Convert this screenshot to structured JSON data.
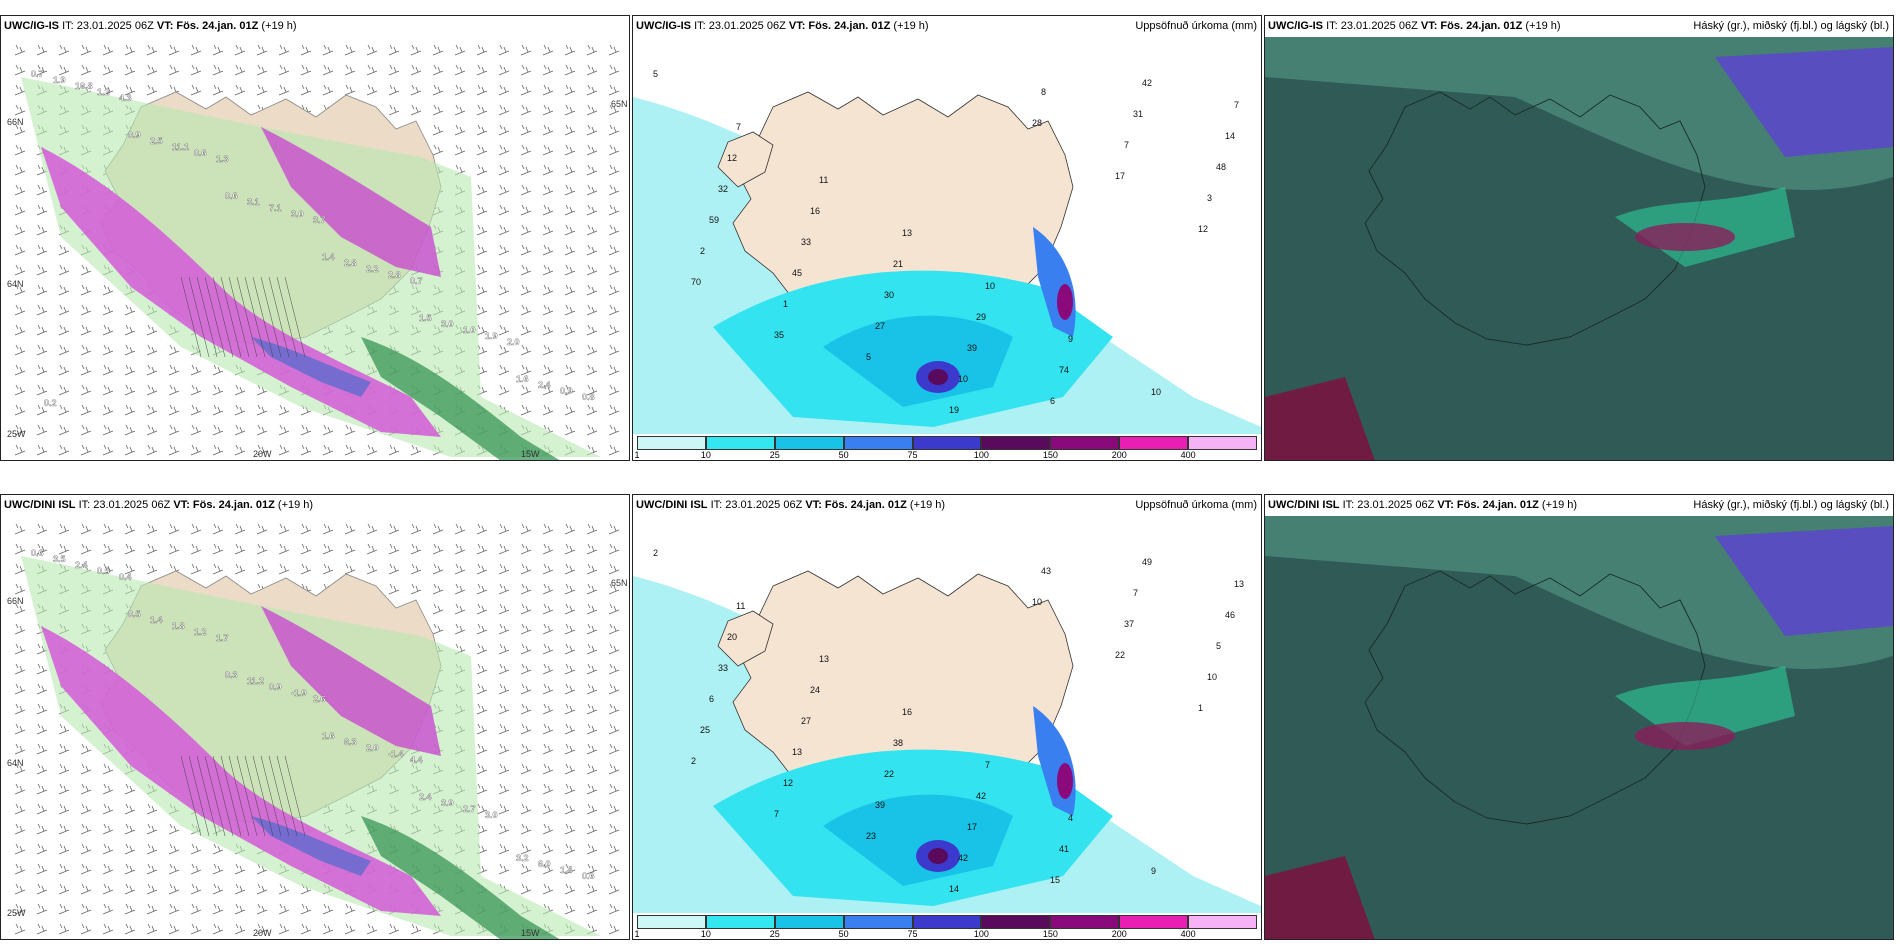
{
  "panels": [
    {
      "model": "UWC/IG-IS",
      "it": "IT: 23.01.2025 06Z",
      "vt_label": "VT:",
      "vt": "Fös. 24.jan. 01Z",
      "lead": "(+19 h)",
      "right": ""
    },
    {
      "model": "UWC/IG-IS",
      "it": "IT: 23.01.2025 06Z",
      "vt_label": "VT:",
      "vt": "Fös. 24.jan. 01Z",
      "lead": "(+19 h)",
      "right": "Uppsöfnuð úrkoma (mm)"
    },
    {
      "model": "UWC/IG-IS",
      "it": "IT: 23.01.2025 06Z",
      "vt_label": "VT:",
      "vt": "Fös. 24.jan. 01Z",
      "lead": "(+19 h)",
      "right": "Háský (gr.), miðský (fj.bl.) og lágský (bl.)"
    },
    {
      "model": "UWC/DINI ISL",
      "it": "IT: 23.01.2025 06Z",
      "vt_label": "VT:",
      "vt": "Fös. 24.jan. 01Z",
      "lead": "(+19 h)",
      "right": ""
    },
    {
      "model": "UWC/DINI ISL",
      "it": "IT: 23.01.2025 06Z",
      "vt_label": "VT:",
      "vt": "Fös. 24.jan. 01Z",
      "lead": "(+19 h)",
      "right": "Uppsöfnuð úrkoma (mm)"
    },
    {
      "model": "UWC/DINI ISL",
      "it": "IT: 23.01.2025 06Z",
      "vt_label": "VT:",
      "vt": "Fös. 24.jan. 01Z",
      "lead": "(+19 h)",
      "right": "Háský (gr.), miðský (fj.bl.) og lágský (bl.)"
    }
  ],
  "colorbar": {
    "ticks": [
      "1",
      "10",
      "25",
      "50",
      "75",
      "100",
      "150",
      "200",
      "400"
    ],
    "colors": [
      "#cdf7f7",
      "#33e6f0",
      "#19c3e8",
      "#3a7ff0",
      "#3b3acc",
      "#5a0a5c",
      "#8a0a7c",
      "#e91eb3",
      "#f5b2f5"
    ]
  },
  "wind_map": {
    "axis_labels": [
      "66N",
      "65N",
      "64N",
      "25W",
      "20W",
      "15W"
    ],
    "top_values": [
      "0.7",
      "0.9",
      "0.6",
      "1.4",
      "1.5",
      "1.6",
      "1.9",
      "2.5",
      "3.1",
      "2.8",
      "3.0",
      "2.4",
      "10.8",
      "11.1",
      "7.1",
      "2.2",
      "1.0",
      "0.9",
      "1.2",
      "0.6",
      "3.0",
      "2.8",
      "1.9",
      "0.8",
      "4.3",
      "1.3",
      "3.7",
      "0.7",
      "2.0",
      "0.2"
    ],
    "bottom_values": [
      "0.6",
      "0.5",
      "0.3",
      "1.6",
      "2.4",
      "3.2",
      "3.5",
      "1.4",
      "11.2",
      "6.3",
      "3.9",
      "6.0",
      "2.4",
      "1.8",
      "0.9",
      "2.0",
      "2.7",
      "1.4",
      "0.5",
      "1.2",
      "-1.9",
      "-1.4",
      "3.0",
      "0.6",
      "0.4",
      "1.7",
      "2.6",
      "4.4"
    ]
  },
  "precip_map": {
    "top_values": [
      "5",
      "7",
      "11",
      "13",
      "10",
      "9",
      "10",
      "7",
      "12",
      "16",
      "21",
      "29",
      "74",
      "42",
      "14",
      "32",
      "33",
      "30",
      "39",
      "6",
      "31",
      "48",
      "59",
      "45",
      "27",
      "10",
      "8",
      "7",
      "3",
      "2",
      "1",
      "5",
      "19",
      "28",
      "17",
      "12",
      "70",
      "35"
    ],
    "bottom_values": [
      "2",
      "11",
      "13",
      "16",
      "7",
      "4",
      "9",
      "13",
      "20",
      "24",
      "38",
      "42",
      "41",
      "49",
      "46",
      "33",
      "27",
      "22",
      "17",
      "15",
      "7",
      "5",
      "6",
      "13",
      "39",
      "42",
      "43",
      "37",
      "10",
      "25",
      "12",
      "23",
      "14",
      "10",
      "22",
      "1",
      "2",
      "7"
    ]
  }
}
